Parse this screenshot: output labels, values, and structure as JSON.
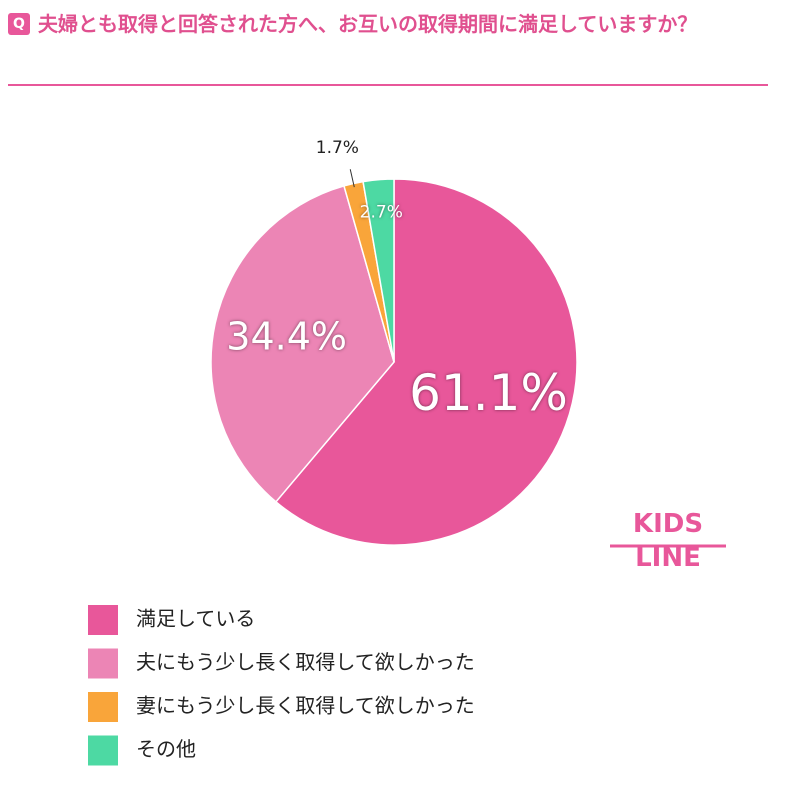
{
  "badge": "Q",
  "title": "夫婦とも取得と回答された方へ、お互いの取得期間に満足していますか？",
  "logo": [
    "KIDS",
    "LINE"
  ],
  "chart_data": {
    "type": "pie",
    "categories": [
      "満足している",
      "夫にもう少し長く取得して欲しかった",
      "妻にもう少し長く取得して欲しかった",
      "その他"
    ],
    "values": [
      61.1,
      34.4,
      1.7,
      2.7
    ],
    "value_labels": [
      "61.1%",
      "34.4%",
      "1.7%",
      "2.7%"
    ],
    "colors": [
      "#e8579a",
      "#ec85b5",
      "#f9a53a",
      "#4dd9a3"
    ],
    "legend": "bottom-left"
  }
}
